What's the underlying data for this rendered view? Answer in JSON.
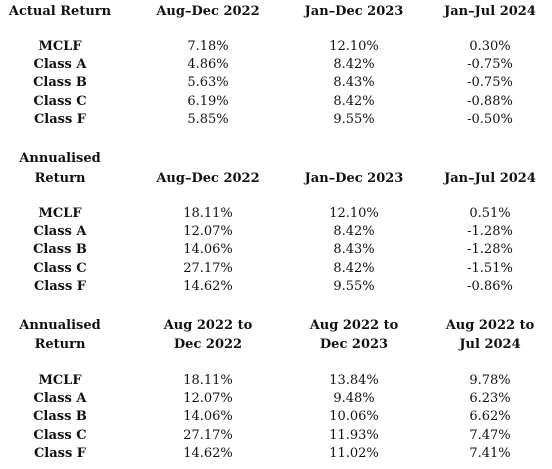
{
  "tables": [
    {
      "header": [
        "Actual Return",
        "Aug–Dec 2022",
        "Jan–Dec 2023",
        "Jan–Jul 2024"
      ],
      "rows": [
        {
          "label": "MCLF",
          "values": [
            "7.18%",
            "12.10%",
            "0.30%"
          ]
        },
        {
          "label": "Class A",
          "values": [
            "4.86%",
            "8.42%",
            "-0.75%"
          ]
        },
        {
          "label": "Class B",
          "values": [
            "5.63%",
            "8.43%",
            "-0.75%"
          ]
        },
        {
          "label": "Class C",
          "values": [
            "6.19%",
            "8.42%",
            "-0.88%"
          ]
        },
        {
          "label": "Class F",
          "values": [
            "5.85%",
            "9.55%",
            "-0.50%"
          ]
        }
      ]
    },
    {
      "header_label_lines": [
        "Annualised",
        "Return"
      ],
      "header": [
        "Aug–Dec 2022",
        "Jan–Dec 2023",
        "Jan–Jul 2024"
      ],
      "rows": [
        {
          "label": "MCLF",
          "values": [
            "18.11%",
            "12.10%",
            "0.51%"
          ]
        },
        {
          "label": "Class A",
          "values": [
            "12.07%",
            "8.42%",
            "-1.28%"
          ]
        },
        {
          "label": "Class B",
          "values": [
            "14.06%",
            "8.43%",
            "-1.28%"
          ]
        },
        {
          "label": "Class C",
          "values": [
            "27.17%",
            "8.42%",
            "-1.51%"
          ]
        },
        {
          "label": "Class F",
          "values": [
            "14.62%",
            "9.55%",
            "-0.86%"
          ]
        }
      ]
    },
    {
      "header_label_lines": [
        "Annualised",
        "Return"
      ],
      "header_lines": [
        [
          "Aug 2022 to",
          "Dec 2022"
        ],
        [
          "Aug 2022 to",
          "Dec 2023"
        ],
        [
          "Aug 2022 to",
          "Jul 2024"
        ]
      ],
      "rows": [
        {
          "label": "MCLF",
          "values": [
            "18.11%",
            "13.84%",
            "9.78%"
          ]
        },
        {
          "label": "Class A",
          "values": [
            "12.07%",
            "9.48%",
            "6.23%"
          ]
        },
        {
          "label": "Class B",
          "values": [
            "14.06%",
            "10.06%",
            "6.62%"
          ]
        },
        {
          "label": "Class C",
          "values": [
            "27.17%",
            "11.93%",
            "7.47%"
          ]
        },
        {
          "label": "Class F",
          "values": [
            "14.62%",
            "11.02%",
            "7.41%"
          ]
        }
      ]
    }
  ]
}
